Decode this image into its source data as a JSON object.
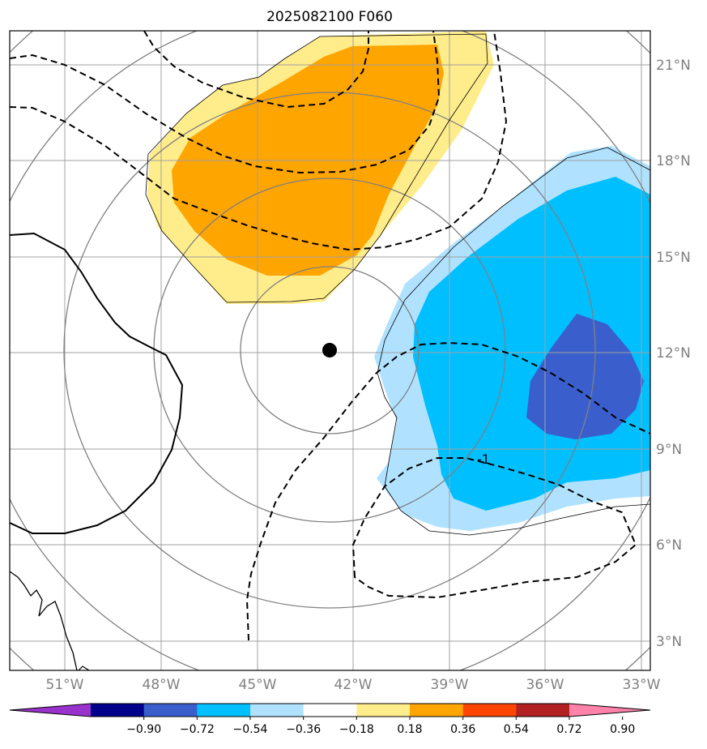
{
  "title": "2025082100 F060",
  "map": {
    "lon_ticks": [
      "51°W",
      "48°W",
      "45°W",
      "42°W",
      "39°W",
      "36°W",
      "33°W"
    ],
    "lat_ticks": [
      "21°N",
      "18°N",
      "15°N",
      "12°N",
      "9°N",
      "6°N",
      "3°N"
    ],
    "contour_label": "-1",
    "storm_center": {
      "lon": "42.8°W",
      "lat": "12.1°N"
    }
  },
  "colorbar": {
    "tick_labels": [
      "−0.90",
      "−0.72",
      "−0.54",
      "−0.36",
      "−0.18",
      "0.18",
      "0.36",
      "0.54",
      "0.72",
      "0.90"
    ],
    "colors": [
      "#9932cc",
      "#00008b",
      "#3a5fcd",
      "#00bfff",
      "#b0e2ff",
      "#ffffff",
      "#ffec8b",
      "#ffa500",
      "#ff4500",
      "#b22222",
      "#ff82ab"
    ]
  }
}
